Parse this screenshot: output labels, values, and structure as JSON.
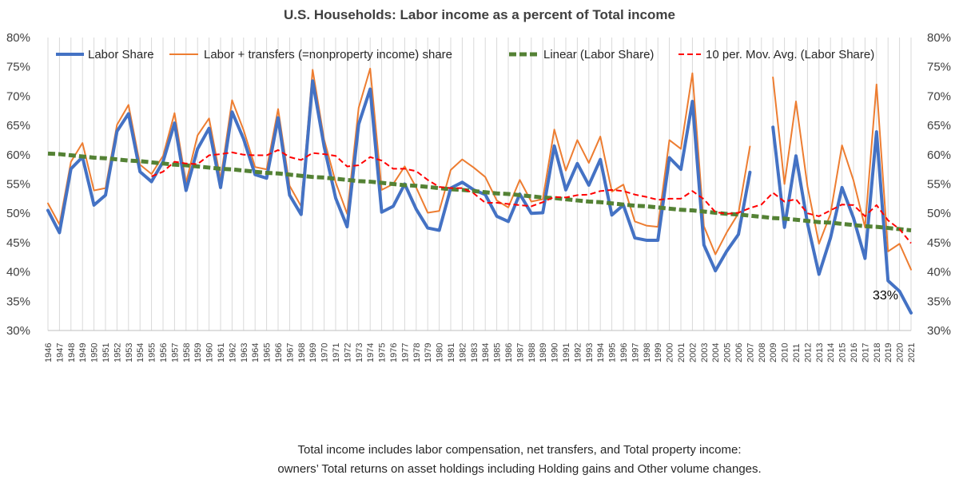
{
  "chart_data": {
    "type": "line",
    "title": "U.S. Households: Labor income as a percent of Total income",
    "xlabel": "",
    "ylabel": "",
    "ylim": [
      30,
      80
    ],
    "y_ticks": [
      "30%",
      "35%",
      "40%",
      "45%",
      "50%",
      "55%",
      "60%",
      "65%",
      "70%",
      "75%",
      "80%"
    ],
    "y_tick_values": [
      30,
      35,
      40,
      45,
      50,
      55,
      60,
      65,
      70,
      75,
      80
    ],
    "x": [
      1946,
      1947,
      1948,
      1949,
      1950,
      1951,
      1952,
      1953,
      1954,
      1955,
      1956,
      1957,
      1958,
      1959,
      1960,
      1961,
      1962,
      1963,
      1964,
      1965,
      1966,
      1967,
      1968,
      1969,
      1970,
      1971,
      1972,
      1973,
      1974,
      1975,
      1976,
      1977,
      1978,
      1979,
      1980,
      1981,
      1982,
      1983,
      1984,
      1985,
      1986,
      1987,
      1988,
      1989,
      1990,
      1991,
      1992,
      1993,
      1994,
      1995,
      1996,
      1997,
      1998,
      1999,
      2000,
      2001,
      2002,
      2003,
      2004,
      2005,
      2006,
      2007,
      2008,
      2009,
      2010,
      2011,
      2012,
      2013,
      2014,
      2015,
      2016,
      2017,
      2018,
      2019,
      2020,
      2021
    ],
    "x_labels": [
      "1946",
      "1947",
      "1948",
      "1949",
      "1950",
      "1951",
      "1952",
      "1953",
      "1954",
      "1955",
      "1956",
      "1957",
      "1958",
      "1959",
      "1960",
      "1961",
      "1962",
      "1963",
      "1964",
      "1965",
      "1966",
      "1967",
      "1968",
      "1969",
      "1970",
      "1971",
      "1972",
      "1973",
      "1974",
      "1975",
      "1976",
      "1977",
      "1978",
      "1979",
      "1980",
      "1981",
      "1982",
      "1983",
      "1984",
      "1985",
      "1986",
      "1987",
      "1988",
      "1989",
      "1990",
      "1991",
      "1992",
      "1993",
      "1994",
      "1995",
      "1996",
      "1997",
      "1998",
      "1999",
      "2000",
      "2001",
      "2002",
      "2003",
      "2004",
      "2005",
      "2006",
      "2007",
      "2008",
      "2009",
      "2010",
      "2011",
      "2012",
      "2013",
      "2014",
      "2015",
      "2016",
      "2017",
      "2018",
      "2019",
      "2020",
      "2021"
    ],
    "grid": "vertical",
    "legend_position": "top",
    "series": [
      {
        "name": "Labor Share",
        "style": "solid-thick",
        "color": "#4472C4",
        "values": [
          50.5,
          46.7,
          57.6,
          59.6,
          51.4,
          53.1,
          64.0,
          67.0,
          57.1,
          55.4,
          58.8,
          65.4,
          53.9,
          61.0,
          64.5,
          54.4,
          67.3,
          62.7,
          56.6,
          56.0,
          66.3,
          53.1,
          49.8,
          72.6,
          61.4,
          52.6,
          47.7,
          65.2,
          71.2,
          50.2,
          51.2,
          55.0,
          50.7,
          47.5,
          47.1,
          54.3,
          55.3,
          54.0,
          53.2,
          49.5,
          48.6,
          53.3,
          50.0,
          50.1,
          61.5,
          54.0,
          58.5,
          54.8,
          59.2,
          49.7,
          51.4,
          45.8,
          45.4,
          45.4,
          59.5,
          57.5,
          69.1,
          44.6,
          40.2,
          43.6,
          46.4,
          57.0,
          null,
          64.7,
          47.6,
          59.8,
          48.3,
          39.6,
          45.8,
          54.4,
          49.2,
          42.3,
          63.9,
          38.5,
          36.7,
          33.0
        ]
      },
      {
        "name": "Labor + transfers (=nonproperty income) share",
        "style": "solid-thin",
        "color": "#ED7D31",
        "values": [
          51.7,
          48.1,
          58.8,
          62.0,
          53.9,
          54.3,
          65.1,
          68.5,
          58.3,
          56.7,
          59.8,
          67.1,
          55.2,
          63.3,
          66.2,
          55.8,
          69.3,
          64.2,
          57.9,
          57.5,
          67.8,
          54.7,
          51.2,
          74.5,
          62.6,
          55.3,
          49.9,
          68.0,
          74.7,
          54.0,
          55.0,
          58.0,
          54.4,
          50.1,
          50.4,
          57.4,
          59.2,
          57.8,
          56.2,
          52.2,
          51.0,
          55.7,
          52.0,
          52.4,
          64.3,
          57.3,
          62.5,
          58.6,
          63.1,
          53.7,
          54.9,
          48.6,
          47.9,
          47.7,
          62.5,
          61.0,
          73.9,
          47.8,
          43.0,
          46.8,
          50.0,
          61.4,
          null,
          73.2,
          55.0,
          69.1,
          54.6,
          44.8,
          49.9,
          61.6,
          55.6,
          47.6,
          72.0,
          43.5,
          44.8,
          40.4
        ]
      },
      {
        "name": "Linear (Labor Share)",
        "style": "dashed-thick",
        "color": "#548235",
        "values": [
          60.2,
          60.1,
          59.9,
          59.7,
          59.5,
          59.4,
          59.2,
          59.0,
          58.9,
          58.7,
          58.5,
          58.3,
          58.2,
          58.0,
          57.8,
          57.6,
          57.5,
          57.3,
          57.1,
          56.9,
          56.8,
          56.6,
          56.4,
          56.2,
          56.1,
          55.9,
          55.7,
          55.5,
          55.4,
          55.2,
          55.0,
          54.8,
          54.7,
          54.5,
          54.3,
          54.1,
          54.0,
          53.8,
          53.6,
          53.4,
          53.3,
          53.1,
          52.9,
          52.7,
          52.6,
          52.4,
          52.2,
          52.0,
          51.9,
          51.7,
          51.5,
          51.3,
          51.2,
          51.0,
          50.8,
          50.6,
          50.5,
          50.3,
          50.1,
          49.9,
          49.8,
          49.6,
          49.4,
          49.2,
          49.1,
          48.9,
          48.7,
          48.5,
          48.4,
          48.2,
          48.0,
          47.8,
          47.7,
          47.5,
          47.3,
          47.1
        ]
      },
      {
        "name": "10 per. Mov. Avg. (Labor Share)",
        "style": "dashed-thin",
        "color": "#FF0000",
        "values": [
          null,
          null,
          null,
          null,
          null,
          null,
          null,
          null,
          null,
          56.3,
          57.1,
          58.8,
          58.5,
          58.4,
          59.9,
          60.1,
          60.4,
          60.0,
          59.9,
          59.9,
          60.8,
          59.6,
          59.1,
          60.3,
          60.1,
          59.8,
          58.0,
          58.2,
          59.6,
          59.0,
          57.6,
          57.6,
          57.2,
          55.7,
          54.5,
          54.3,
          54.3,
          53.4,
          51.8,
          51.8,
          51.6,
          51.4,
          51.2,
          51.9,
          52.8,
          52.7,
          53.1,
          53.2,
          53.8,
          54.0,
          53.8,
          53.2,
          52.8,
          52.3,
          52.5,
          52.5,
          53.8,
          52.4,
          50.2,
          49.9,
          50.1,
          50.9,
          51.5,
          53.5,
          52.0,
          52.4,
          50.0,
          49.5,
          50.5,
          51.5,
          51.4,
          49.5,
          51.4,
          48.8,
          47.3,
          44.9
        ]
      }
    ],
    "annotations": [
      {
        "text": "33%",
        "year": 2021,
        "value": 33.0
      }
    ]
  },
  "caption": {
    "line1": "Total income includes labor compensation, net transfers, and Total property income:",
    "line2": "owners’ Total returns on asset holdings including Holding gains and Other volume changes."
  }
}
